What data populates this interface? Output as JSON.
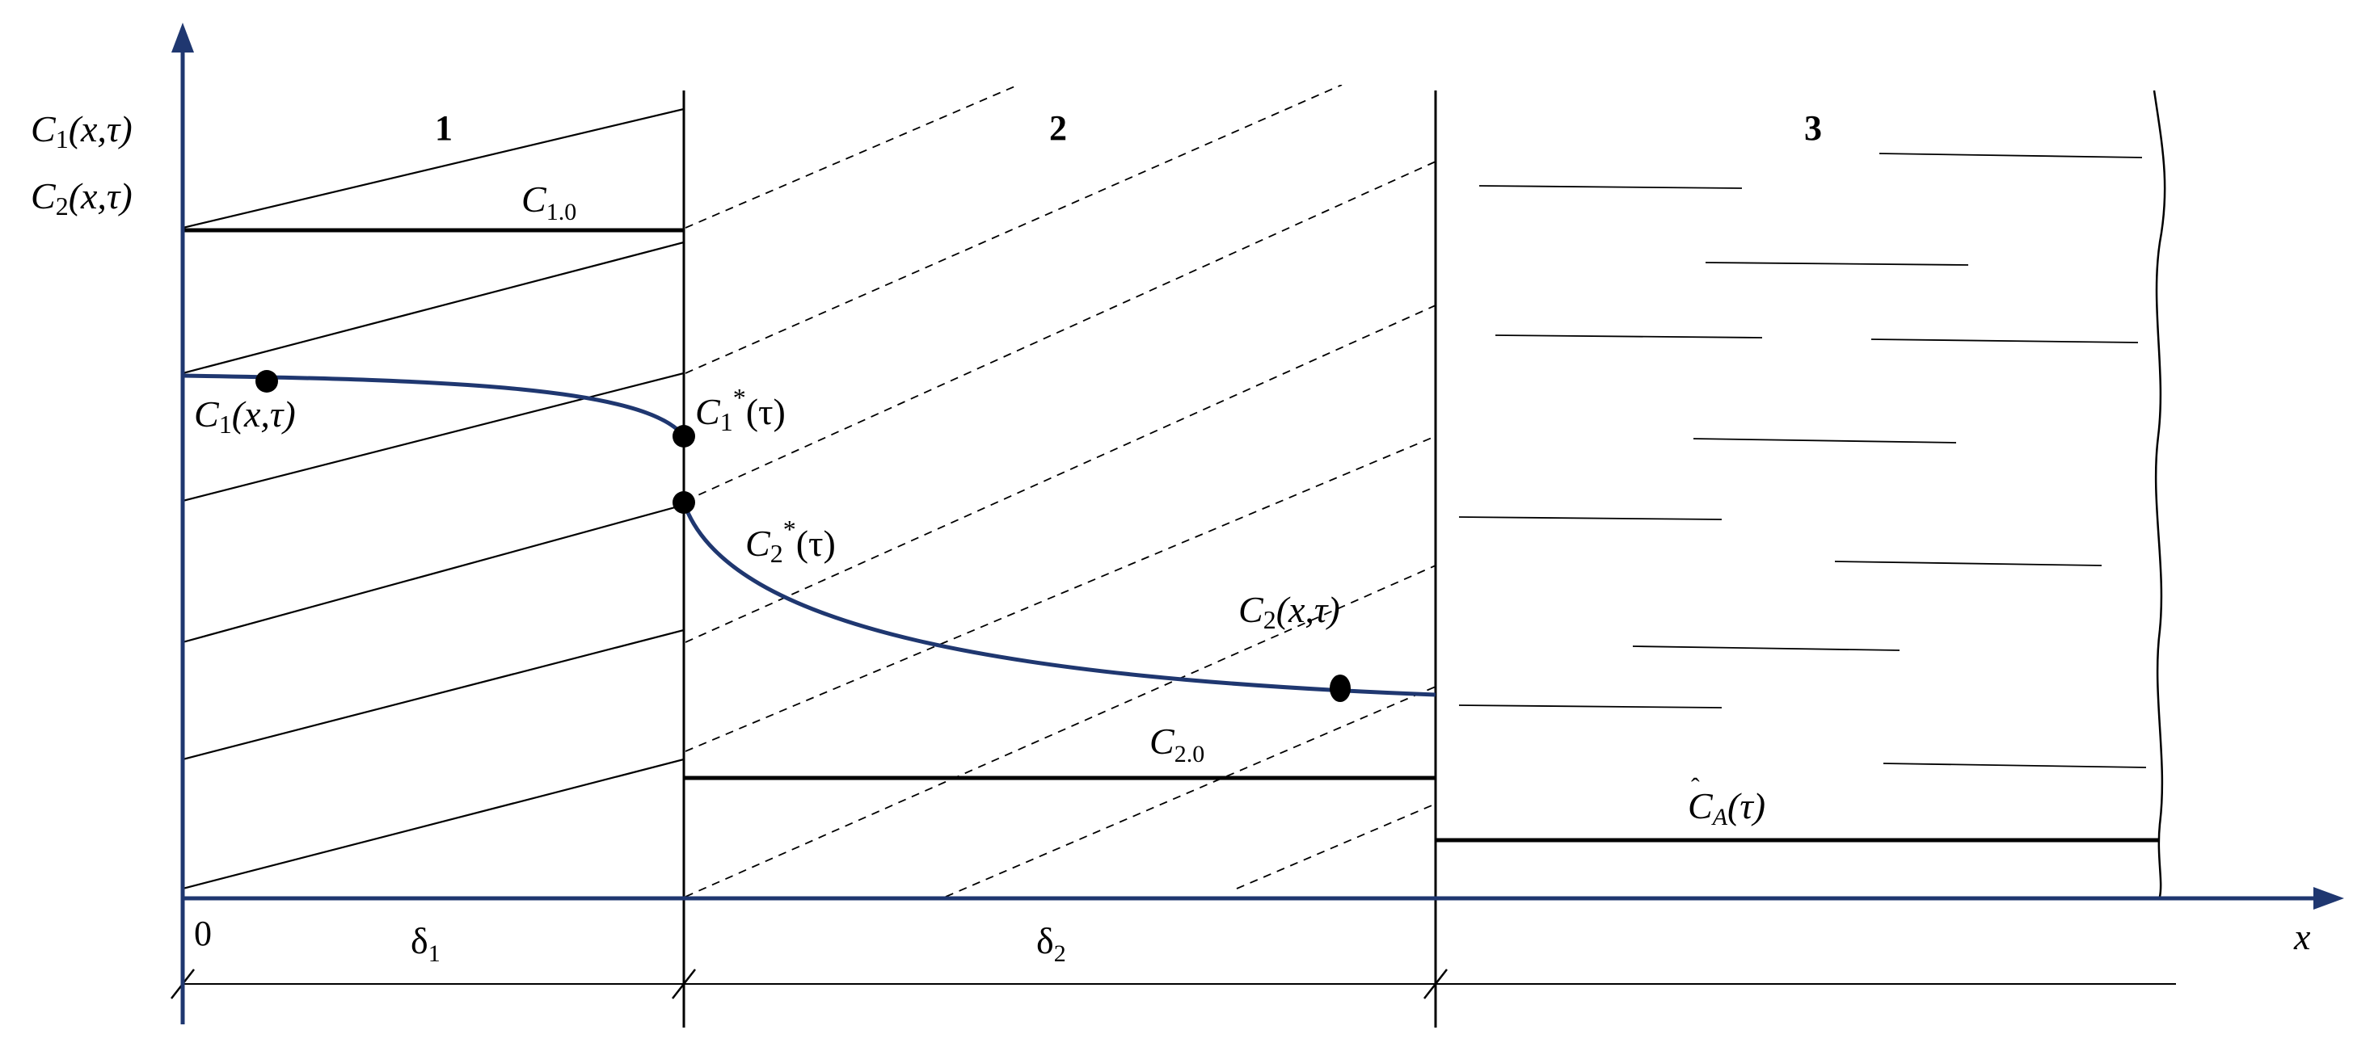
{
  "colors": {
    "axis": "#1f3770",
    "curve": "#1f3770",
    "line": "#000000",
    "hatch": "#000000",
    "background": "#ffffff"
  },
  "region_labels": {
    "r1": "1",
    "r2": "2",
    "r3": "3"
  },
  "axis": {
    "y_label_top": {
      "sym": "C",
      "sub": "1",
      "args": "(x,τ)"
    },
    "y_label_bottom": {
      "sym": "C",
      "sub": "2",
      "args": "(x,τ)"
    },
    "x_label": "x",
    "origin": "0"
  },
  "levels": {
    "c10": {
      "sym": "C",
      "sub": "1.0"
    },
    "c20": {
      "sym": "C",
      "sub": "2.0"
    },
    "ca": {
      "sym": "C",
      "sub": "A",
      "args": "(τ)"
    }
  },
  "curves": {
    "c1": {
      "sym": "C",
      "sub": "1",
      "args": "(x,τ)"
    },
    "c1_star": {
      "sym": "C",
      "sub": "1",
      "sup": "*",
      "args": "(τ)"
    },
    "c2_star": {
      "sym": "C",
      "sub": "2",
      "sup": "*",
      "args": "(τ)"
    },
    "c2": {
      "sym": "C",
      "sub": "2",
      "args": "(x,τ)"
    }
  },
  "dimensions": {
    "delta1": {
      "sym": "δ",
      "sub": "1"
    },
    "delta2": {
      "sym": "δ",
      "sub": "2"
    }
  }
}
